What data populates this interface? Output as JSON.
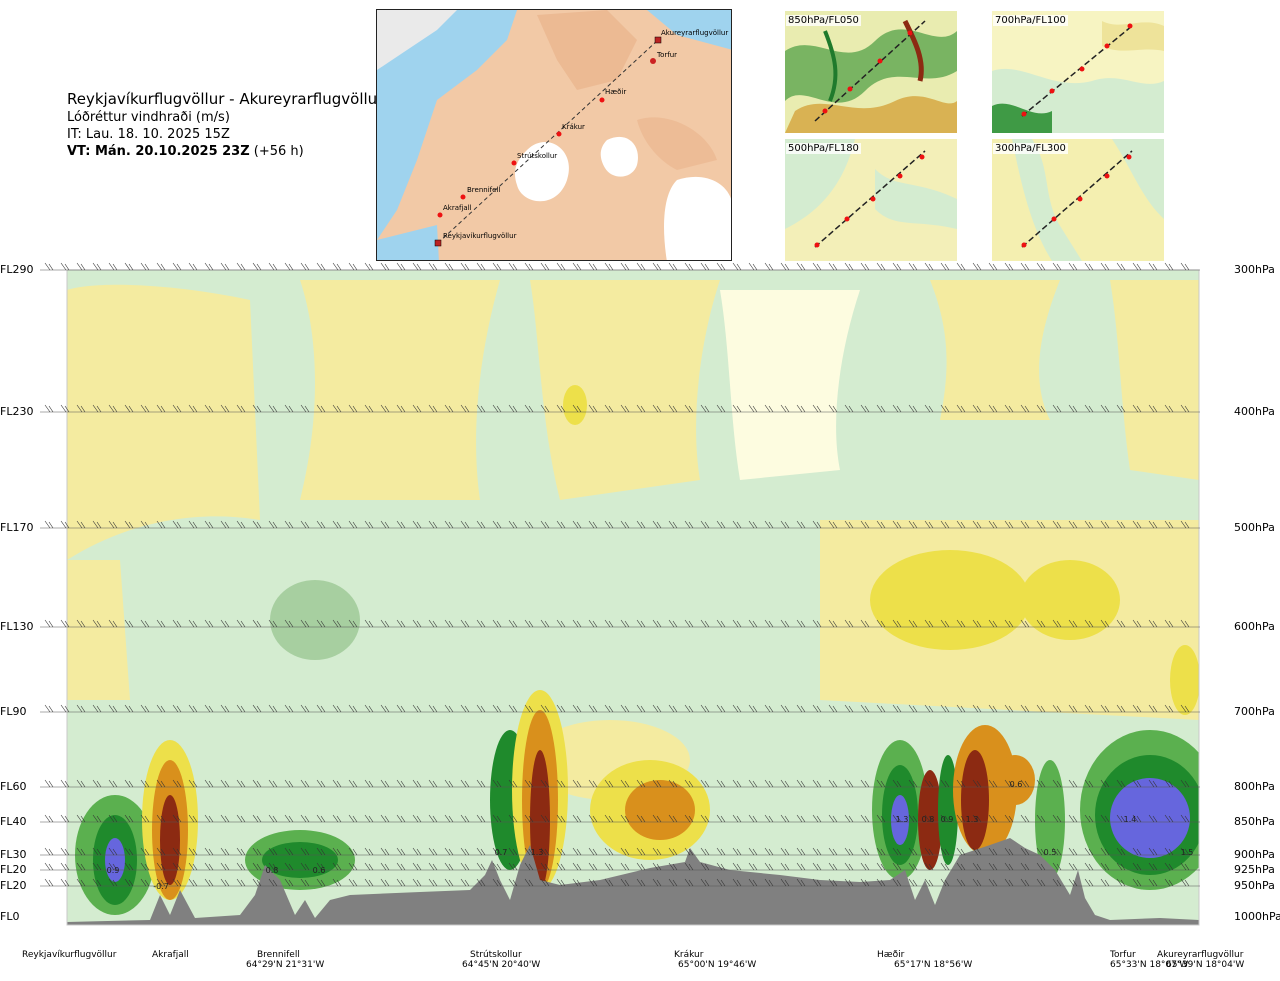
{
  "header": {
    "route": "Reykjavíkurflugvöllur - Akureyrarflugvöllur",
    "variable": "Lóðréttur vindhraði (m/s)",
    "it": "IT: Lau. 18. 10. 2025 15Z",
    "vt_bold": "VT: Mán. 20.10.2025 23Z",
    "vt_lead": "(+56 h)"
  },
  "map": {
    "points": [
      {
        "name": "Akureyrarflugvöllur"
      },
      {
        "name": "Torfur"
      },
      {
        "name": "Hæðir"
      },
      {
        "name": "Krákur"
      },
      {
        "name": "Strútskollur"
      },
      {
        "name": "Brennifell"
      },
      {
        "name": "Akrafjall"
      },
      {
        "name": "Reykjavíkurflugvöllur"
      }
    ]
  },
  "thumbnails": [
    {
      "label": "850hPa/FL050"
    },
    {
      "label": "700hPa/FL100"
    },
    {
      "label": "500hPa/FL180"
    },
    {
      "label": "300hPa/FL300"
    }
  ],
  "levels": [
    {
      "fl": "FL290",
      "hpa": "300hPa",
      "p": 300
    },
    {
      "fl": "FL230",
      "hpa": "400hPa",
      "p": 400
    },
    {
      "fl": "FL170",
      "hpa": "500hPa",
      "p": 500
    },
    {
      "fl": "FL130",
      "hpa": "600hPa",
      "p": 600
    },
    {
      "fl": "FL90",
      "hpa": "700hPa",
      "p": 700
    },
    {
      "fl": "FL60",
      "hpa": "800hPa",
      "p": 800
    },
    {
      "fl": "FL40",
      "hpa": "850hPa",
      "p": 850
    },
    {
      "fl": "FL30",
      "hpa": "900hPa",
      "p": 900
    },
    {
      "fl": "FL20",
      "hpa": "925hPa",
      "p": 925
    },
    {
      "fl": "FL20",
      "hpa": "950hPa",
      "p": 950
    },
    {
      "fl": "FL0",
      "hpa": "1000hPa",
      "p": 1000
    }
  ],
  "stations": [
    {
      "name": "Reykjavíkurflugvöllur",
      "coord": ""
    },
    {
      "name": "Akrafjall",
      "coord": ""
    },
    {
      "name": "Brennifell",
      "coord": "64°29'N 21°31'W"
    },
    {
      "name": "Strútskollur",
      "coord": "64°45'N 20°40'W"
    },
    {
      "name": "Krákur",
      "coord": "65°00'N 19°46'W"
    },
    {
      "name": "Hæðir",
      "coord": "65°17'N 18°56'W"
    },
    {
      "name": "Torfur",
      "coord": "65°33'N 18°07'W"
    },
    {
      "name": "Akureyrarflugvöllur",
      "coord": "65°39'N 18°04'W"
    }
  ],
  "chart_data": {
    "type": "heatmap",
    "title": "",
    "xlabel": "",
    "ylabel": "",
    "x_domain": "distance along route",
    "y_scale": "pressure (hPa)",
    "ylim": [
      1000,
      300
    ],
    "colors": {
      "strong_up_green": "#1f8a2c",
      "up_green": "#5bb04f",
      "weak_up_green": "#cfe8c9",
      "neutral": "#fdfce0",
      "weak_down_yellow": "#f4eba0",
      "down_yellow": "#ede04a",
      "strong_down_orange": "#d9901c",
      "very_strong_down_brown": "#8c2a12",
      "extreme_blue": "#6666dd",
      "terrain": "#808080"
    },
    "value_labels": [
      "0.9",
      "-0.7",
      "0.8",
      "0.6",
      "0.7",
      "1.3",
      "1.3",
      "0.8",
      "0.9",
      "1.3",
      "0.6",
      "0.5",
      "1.4",
      "1.5"
    ]
  }
}
